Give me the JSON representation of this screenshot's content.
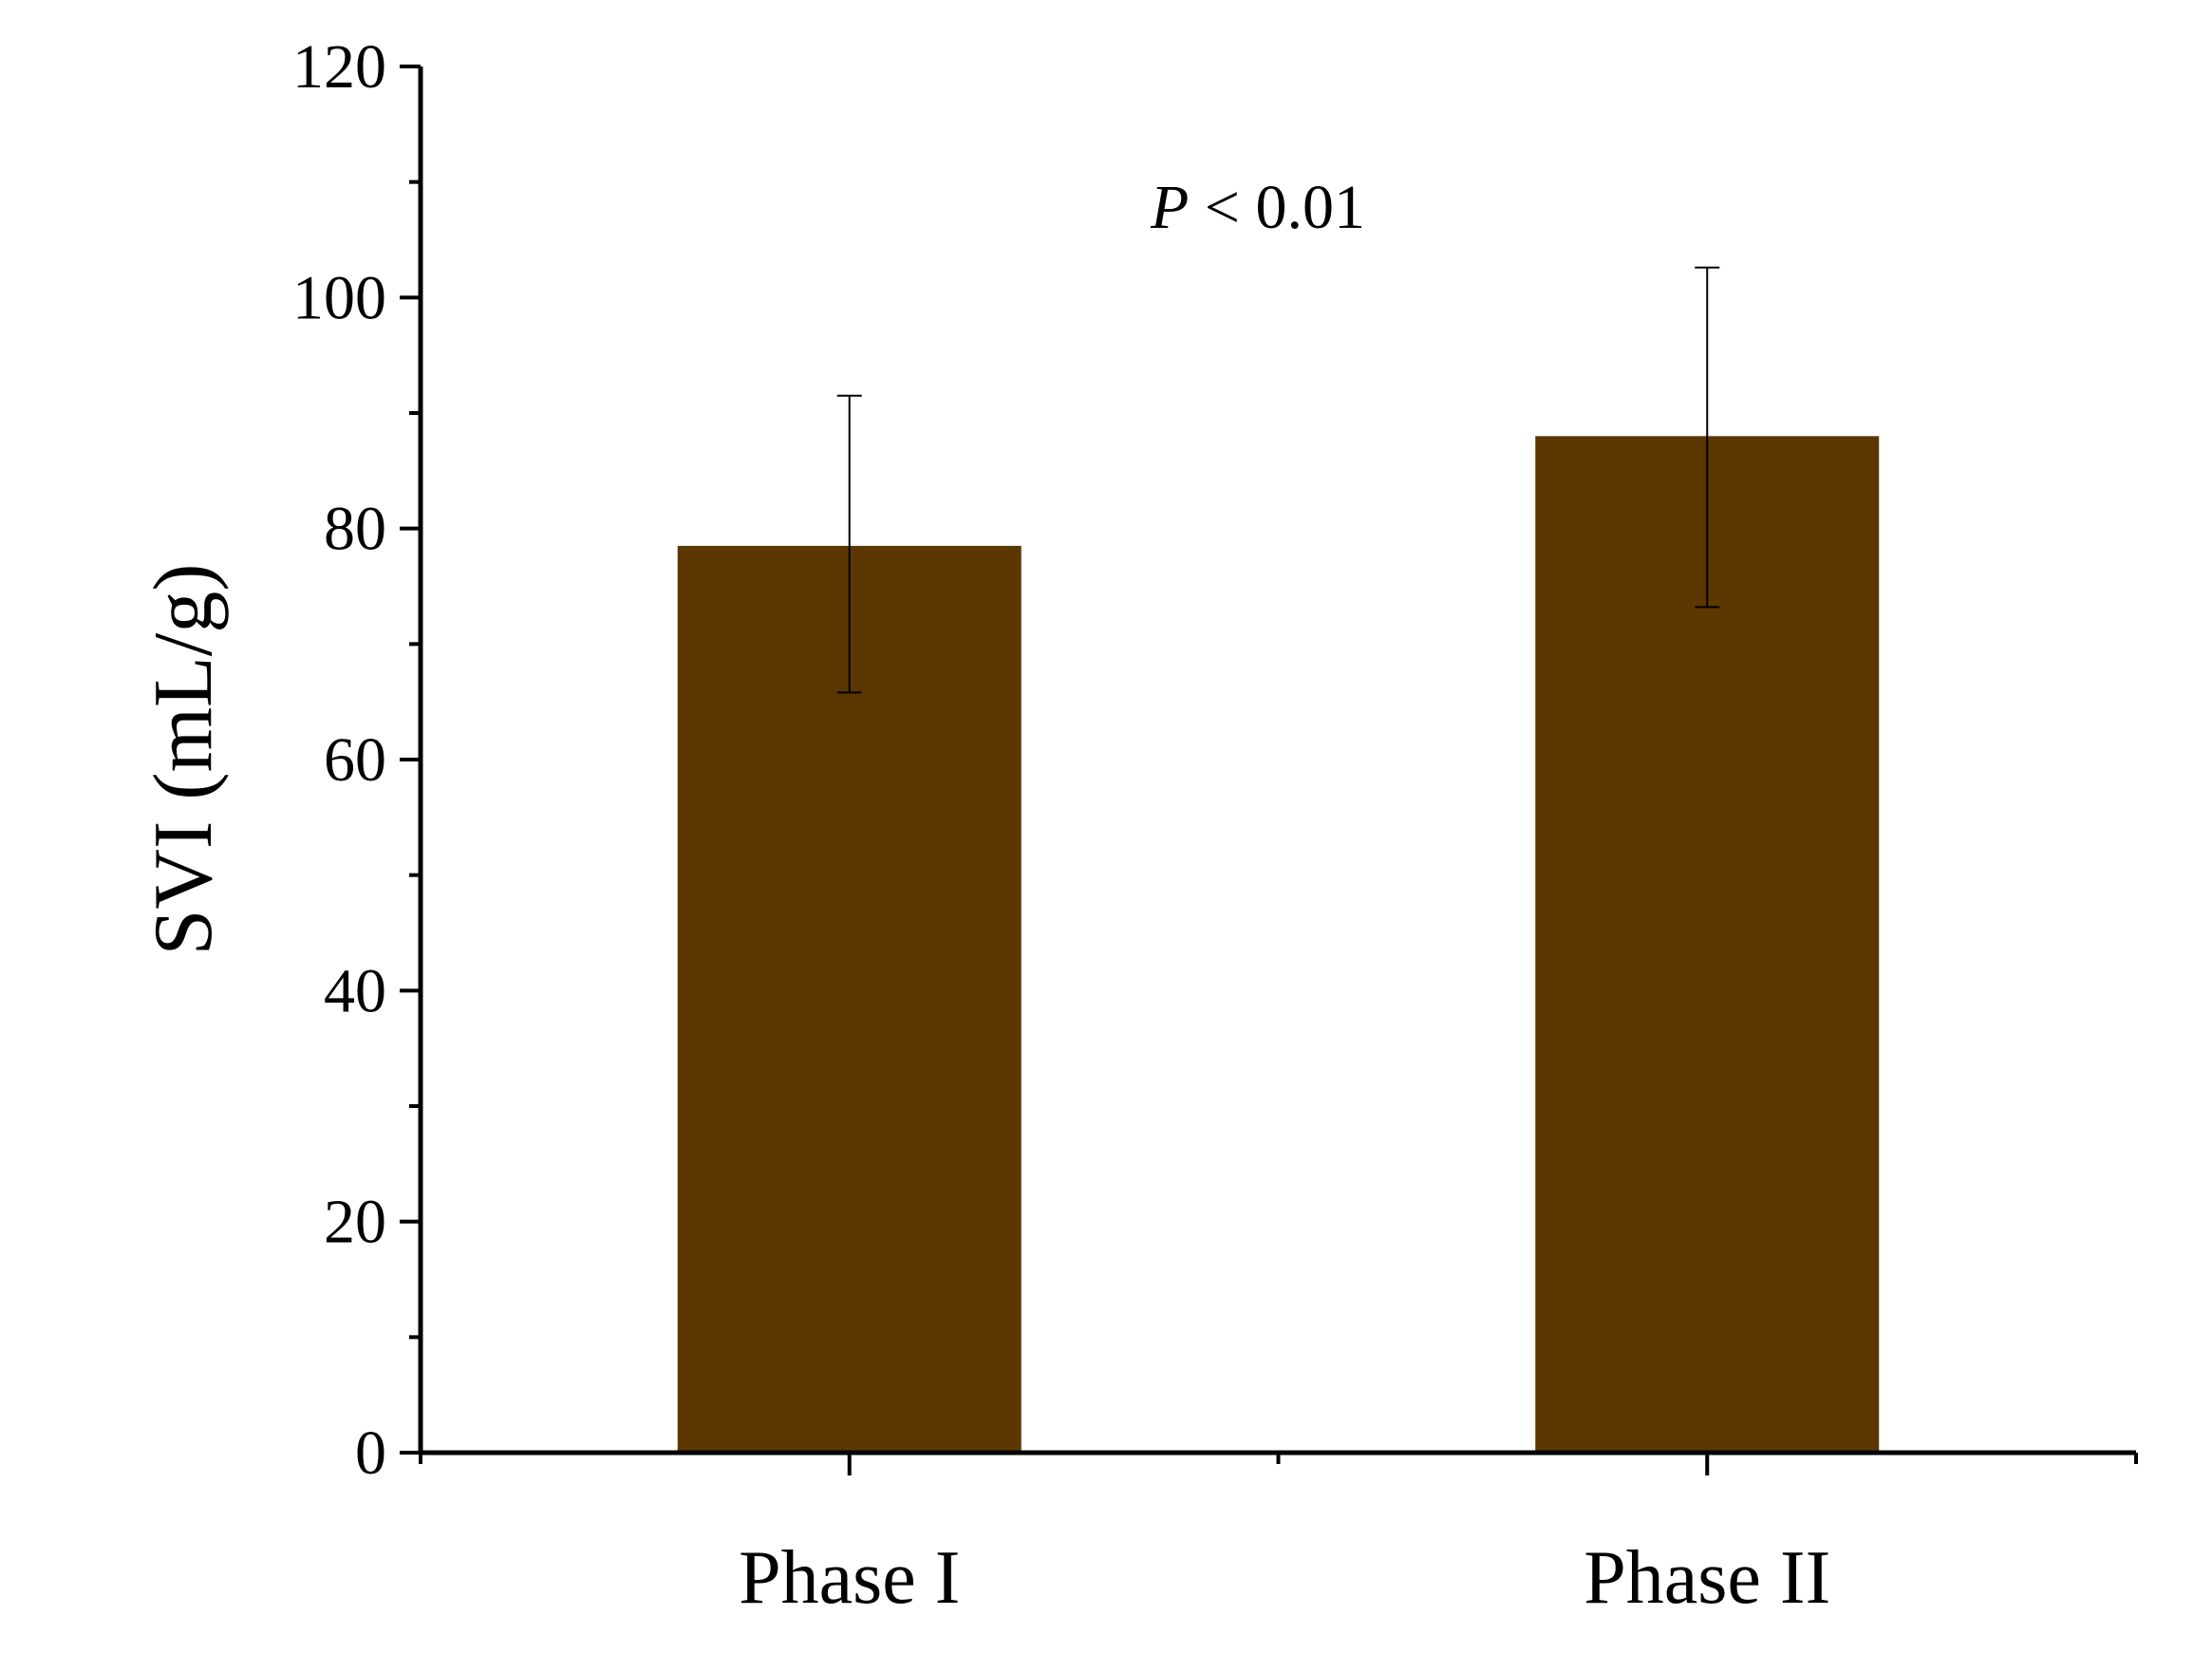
{
  "chart_data": {
    "type": "bar",
    "title": "",
    "xlabel": "",
    "ylabel": "SVI  (mL/g)",
    "categories": [
      "Phase I",
      "Phase II"
    ],
    "values": [
      78.5,
      88.0
    ],
    "error_bars": [
      {
        "low": 65.8,
        "high": 91.5
      },
      {
        "low": 73.2,
        "high": 102.6
      }
    ],
    "ylim": [
      0,
      120
    ],
    "yticks": [
      0,
      20,
      40,
      60,
      80,
      100,
      120
    ],
    "yticks_minor": [
      10,
      30,
      50,
      70,
      90,
      110
    ],
    "annotation": {
      "italic": "P",
      "text": " < 0.01"
    },
    "bar_color": "#5c3800",
    "grid": false,
    "legend": "none"
  }
}
